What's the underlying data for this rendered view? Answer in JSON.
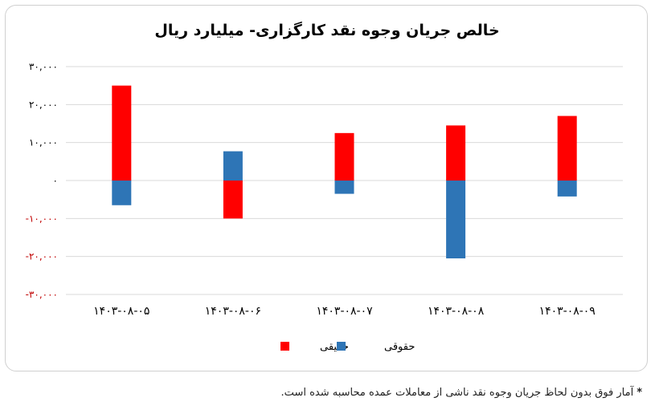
{
  "chart_data": {
    "type": "bar",
    "title": "خالص جریان وجوه نقد کارگزاری- میلیارد ریال",
    "categories": [
      "۱۴۰۳-۰۸-۰۵",
      "۱۴۰۳-۰۸-۰۶",
      "۱۴۰۳-۰۸-۰۷",
      "۱۴۰۳-۰۸-۰۸",
      "۱۴۰۳-۰۸-۰۹"
    ],
    "series": [
      {
        "name": "حقیقی",
        "color": "#ff0000",
        "values": [
          25000,
          -10000,
          12500,
          14500,
          17000
        ]
      },
      {
        "name": "حقوقی",
        "color": "#2e75b6",
        "values": [
          -6500,
          7700,
          -3500,
          -20500,
          -4200
        ]
      }
    ],
    "ylim": [
      -30000,
      30000
    ],
    "yticks": [
      30000,
      20000,
      10000,
      0,
      -10000,
      -20000,
      -30000
    ],
    "ytick_labels": [
      "۳۰,۰۰۰",
      "۲۰,۰۰۰",
      "۱۰,۰۰۰",
      "۰",
      "-۱۰,۰۰۰",
      "-۲۰,۰۰۰",
      "-۳۰,۰۰۰"
    ],
    "negative_tick_color": "#c00000",
    "grid": true,
    "legend_position": "bottom"
  },
  "footnote": {
    "marker": "*",
    "text": "آمار فوق بدون لحاظ جریان وجوه نقد ناشی از معاملات عمده محاسبه شده است."
  }
}
